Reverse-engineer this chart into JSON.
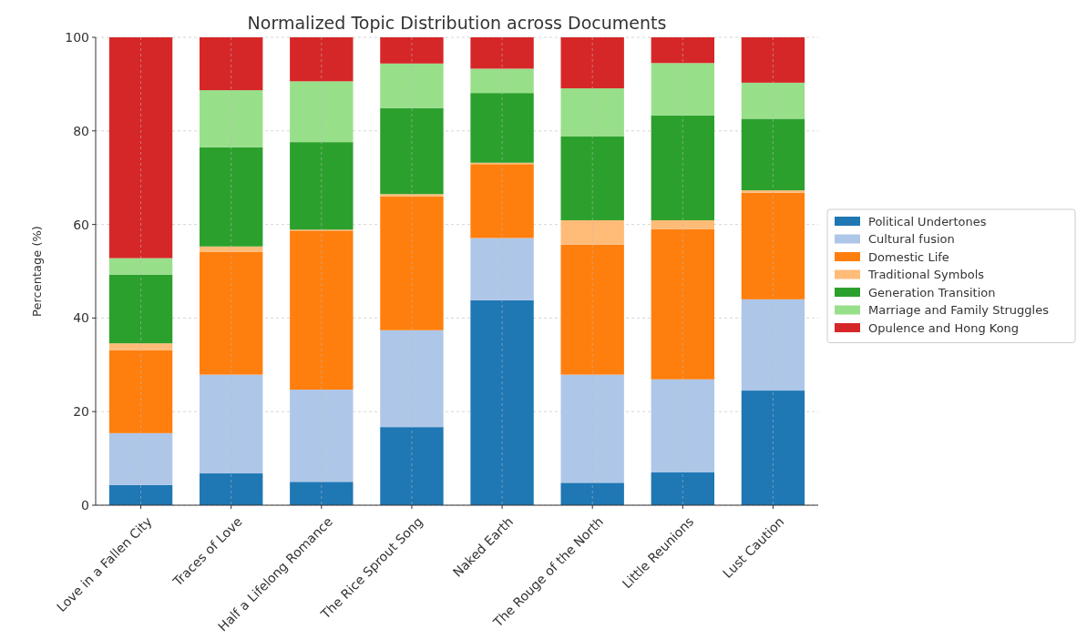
{
  "chart_data": {
    "type": "bar",
    "stacked": true,
    "title": "Normalized Topic Distribution across Documents",
    "ylabel": "Percentage (%)",
    "categories": [
      "Love in a Fallen City",
      "Traces of Love",
      "Half  a  Lifelong Romance",
      "The Rice Sprout Song",
      "Naked Earth",
      "The Rouge of the North",
      "Little Reunions",
      "Lust Caution"
    ],
    "series": [
      {
        "name": "Political Undertones",
        "color": "#1f77b4",
        "values": [
          4.3,
          6.8,
          5.0,
          16.7,
          43.8,
          4.8,
          7.0,
          24.5
        ]
      },
      {
        "name": "Cultural fusion",
        "color": "#aec7e8",
        "values": [
          11.1,
          21.1,
          19.7,
          20.7,
          13.3,
          23.1,
          19.9,
          19.5
        ]
      },
      {
        "name": "Domestic Life",
        "color": "#ff7f0e",
        "values": [
          17.7,
          26.2,
          34.0,
          28.6,
          15.8,
          27.8,
          32.1,
          22.8
        ]
      },
      {
        "name": "Traditional Symbols",
        "color": "#ffbb78",
        "values": [
          1.5,
          1.2,
          0.2,
          0.5,
          0.3,
          5.2,
          1.9,
          0.5
        ]
      },
      {
        "name": "Generation Transition",
        "color": "#2ca02c",
        "values": [
          14.7,
          21.2,
          18.7,
          18.4,
          14.9,
          17.9,
          22.4,
          15.3
        ]
      },
      {
        "name": "Marriage and Family Struggles",
        "color": "#98df8a",
        "values": [
          3.5,
          12.2,
          13.0,
          9.5,
          5.2,
          10.3,
          11.2,
          7.7
        ]
      },
      {
        "name": "Opulence and Hong Kong",
        "color": "#d62728",
        "values": [
          47.2,
          11.3,
          9.4,
          5.6,
          6.7,
          10.9,
          5.5,
          9.7
        ]
      }
    ],
    "ylim": [
      0,
      100
    ],
    "yticks": [
      0,
      20,
      40,
      60,
      80,
      100
    ],
    "grid": true,
    "legend": "right"
  }
}
